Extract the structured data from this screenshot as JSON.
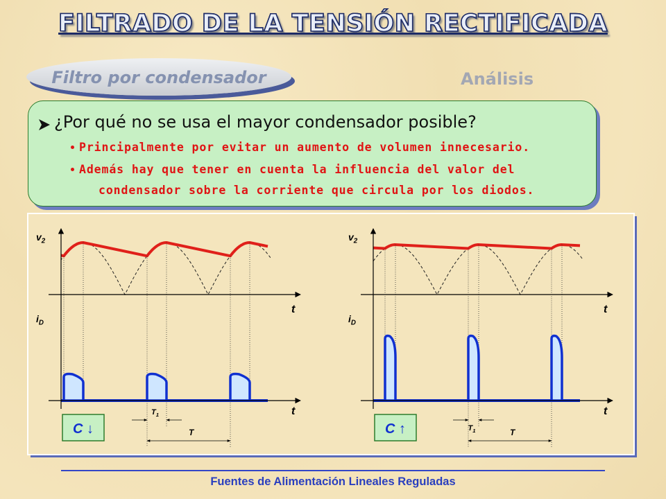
{
  "header": {
    "title": "FILTRADO DE LA TENSIÓN RECTIFICADA",
    "section": "Filtro por condensador",
    "subsection": "Análisis"
  },
  "question": {
    "text": "¿Por qué no se usa el mayor condensador posible?",
    "bullets": [
      "Principalmente por evitar un aumento de volumen innecesario.",
      "Además hay que tener en cuenta la influencia del valor del condensador sobre la corriente que circula por los diodos."
    ]
  },
  "diagrams": [
    {
      "voltage_label": {
        "text": "v",
        "sub": "2"
      },
      "current_label": {
        "text": "i",
        "sub": "D"
      },
      "time_label": "t",
      "capacitor_label": "C ↓",
      "pulse_width_label": {
        "text": "T",
        "sub": "1"
      },
      "period_label": "T"
    },
    {
      "voltage_label": {
        "text": "v",
        "sub": "2"
      },
      "current_label": {
        "text": "i",
        "sub": "D"
      },
      "time_label": "t",
      "capacitor_label": "C ↑",
      "pulse_width_label": {
        "text": "T",
        "sub": "1"
      },
      "period_label": "T"
    }
  ],
  "footer": "Fuentes de Alimentación Lineales Reguladas"
}
